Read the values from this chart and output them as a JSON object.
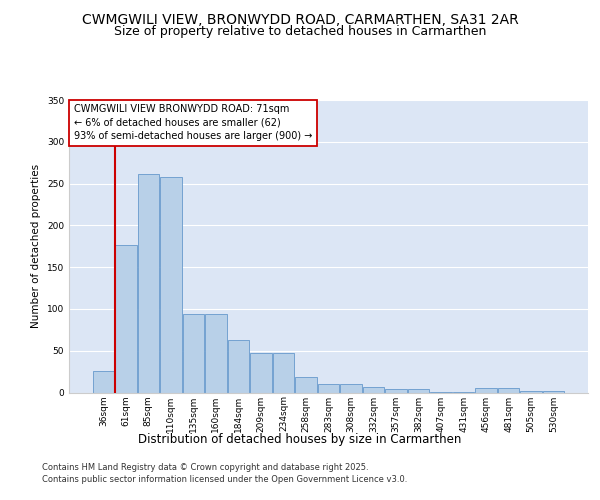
{
  "title1": "CWMGWILI VIEW, BRONWYDD ROAD, CARMARTHEN, SA31 2AR",
  "title2": "Size of property relative to detached houses in Carmarthen",
  "xlabel": "Distribution of detached houses by size in Carmarthen",
  "ylabel": "Number of detached properties",
  "categories": [
    "36sqm",
    "61sqm",
    "85sqm",
    "110sqm",
    "135sqm",
    "160sqm",
    "184sqm",
    "209sqm",
    "234sqm",
    "258sqm",
    "283sqm",
    "308sqm",
    "332sqm",
    "357sqm",
    "382sqm",
    "407sqm",
    "431sqm",
    "456sqm",
    "481sqm",
    "505sqm",
    "530sqm"
  ],
  "values": [
    26,
    176,
    262,
    258,
    94,
    94,
    63,
    47,
    47,
    19,
    10,
    10,
    7,
    4,
    4,
    1,
    1,
    5,
    5,
    2,
    2
  ],
  "bar_color": "#b8d0e8",
  "bar_edge_color": "#6699cc",
  "bg_color": "#dce6f5",
  "grid_color": "#ffffff",
  "vline_color": "#cc0000",
  "vline_position": 0.5,
  "annotation_text": "CWMGWILI VIEW BRONWYDD ROAD: 71sqm\n← 6% of detached houses are smaller (62)\n93% of semi-detached houses are larger (900) →",
  "annotation_box_color": "#ffffff",
  "annotation_box_edge": "#cc0000",
  "footer1": "Contains HM Land Registry data © Crown copyright and database right 2025.",
  "footer2": "Contains public sector information licensed under the Open Government Licence v3.0.",
  "ylim": [
    0,
    350
  ],
  "yticks": [
    0,
    50,
    100,
    150,
    200,
    250,
    300,
    350
  ],
  "title1_fontsize": 10,
  "title2_fontsize": 9,
  "xlabel_fontsize": 8.5,
  "ylabel_fontsize": 7.5,
  "tick_fontsize": 6.5,
  "annotation_fontsize": 7,
  "footer_fontsize": 6
}
